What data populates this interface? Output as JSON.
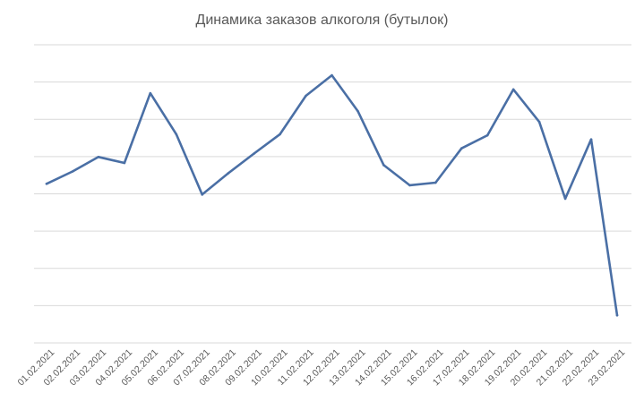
{
  "chart_data": {
    "type": "line",
    "title": "Динамика заказов алкоголя (бутылок)",
    "xlabel": "",
    "ylabel": "",
    "ylim": [
      0,
      8
    ],
    "grid": true,
    "legend": "none",
    "categories": [
      "01.02.2021",
      "02.02.2021",
      "03.02.2021",
      "04.02.2021",
      "05.02.2021",
      "06.02.2021",
      "07.02.2021",
      "08.02.2021",
      "09.02.2021",
      "10.02.2021",
      "11.02.2021",
      "12.02.2021",
      "13.02.2021",
      "14.02.2021",
      "15.02.2021",
      "16.02.2021",
      "17.02.2021",
      "18.02.2021",
      "19.02.2021",
      "20.02.2021",
      "21.02.2021",
      "22.02.2021",
      "23.02.2021"
    ],
    "series": [
      {
        "color": "#4a6fa5",
        "values": [
          4.27,
          4.6,
          4.99,
          4.83,
          6.7,
          5.6,
          3.98,
          4.55,
          5.08,
          5.6,
          6.63,
          7.18,
          6.22,
          4.77,
          4.23,
          4.3,
          5.22,
          5.57,
          6.8,
          5.93,
          3.87,
          5.46,
          0.74
        ]
      }
    ]
  }
}
